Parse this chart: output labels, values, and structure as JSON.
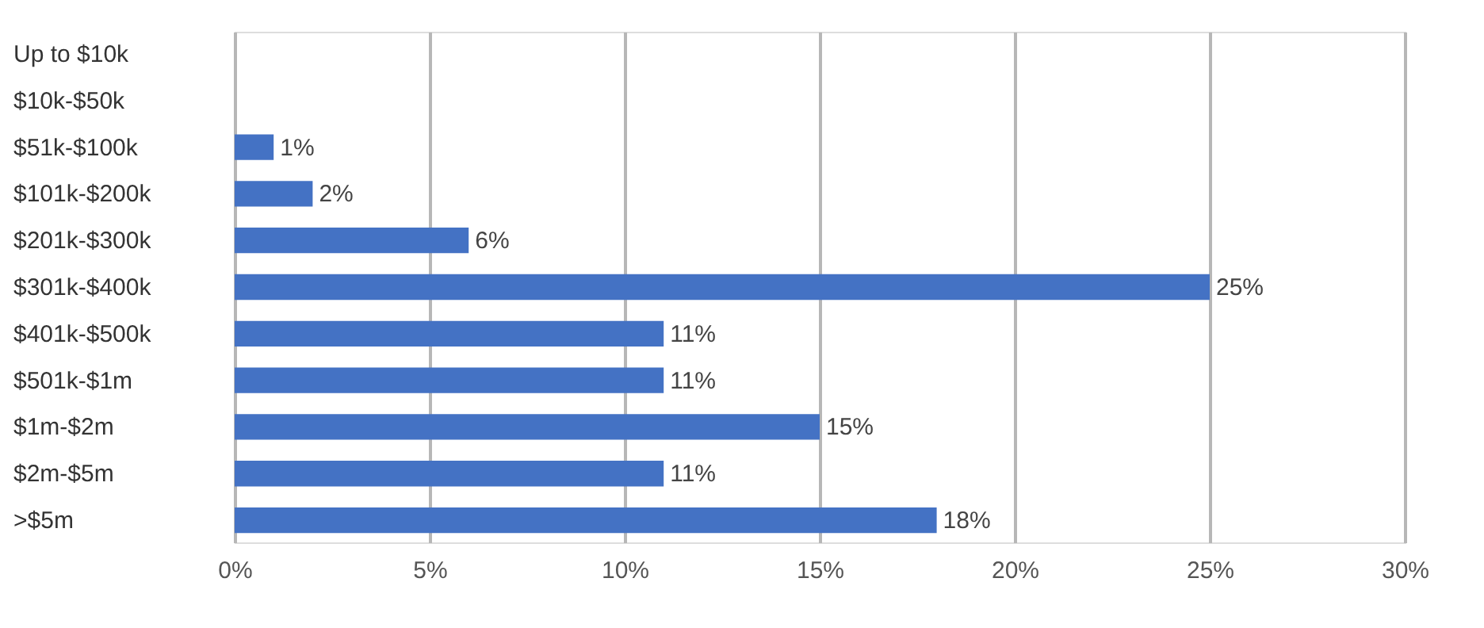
{
  "chart_data": {
    "type": "bar",
    "orientation": "horizontal",
    "categories": [
      "Up to $10k",
      "$10k-$50k",
      "$51k-$100k",
      "$101k-$200k",
      "$201k-$300k",
      "$301k-$400k",
      "$401k-$500k",
      "$501k-$1m",
      "$1m-$2m",
      "$2m-$5m",
      ">$5m"
    ],
    "values": [
      0,
      0,
      1,
      2,
      6,
      25,
      11,
      11,
      15,
      11,
      18
    ],
    "value_labels": [
      null,
      null,
      "1%",
      "2%",
      "6%",
      "25%",
      "11%",
      "11%",
      "15%",
      "11%",
      "18%"
    ],
    "color": "#4472c4",
    "xlim": [
      0,
      30
    ],
    "xticks": [
      {
        "value": 0,
        "label": "0%"
      },
      {
        "value": 5,
        "label": "5%"
      },
      {
        "value": 10,
        "label": "10%"
      },
      {
        "value": 15,
        "label": "15%"
      },
      {
        "value": 20,
        "label": "20%"
      },
      {
        "value": 25,
        "label": "25%"
      },
      {
        "value": 30,
        "label": "30%"
      }
    ],
    "grid": "x"
  }
}
